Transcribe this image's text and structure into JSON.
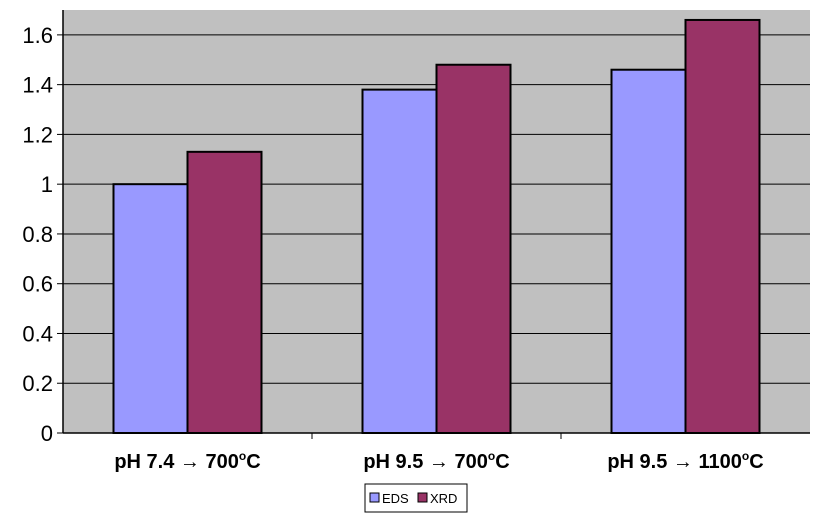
{
  "chart_data": {
    "type": "bar",
    "categories": [
      "pH 7.4 → 700°C",
      "pH 9.5 → 700°C",
      "pH 9.5 → 1100°C"
    ],
    "category_parts": [
      {
        "main": "pH 7.4 → 700",
        "sup": "o",
        "unit": "C"
      },
      {
        "main": "pH 9.5 → 700",
        "sup": "o",
        "unit": "C"
      },
      {
        "main": "pH 9.5 → 1100",
        "sup": "o",
        "unit": "C"
      }
    ],
    "series": [
      {
        "name": "EDS",
        "values": [
          1.0,
          1.38,
          1.46
        ],
        "color": "#9999ff"
      },
      {
        "name": "XRD",
        "values": [
          1.13,
          1.48,
          1.66
        ],
        "color": "#993366"
      }
    ],
    "yticks": [
      "0",
      "0.2",
      "0.4",
      "0.6",
      "0.8",
      "1",
      "1.2",
      "1.4",
      "1.6"
    ],
    "ylim": [
      0,
      1.7
    ],
    "grid": true,
    "plot_background": "#c0c0c0",
    "legend_position": "bottom-center",
    "title": "",
    "xlabel": "",
    "ylabel": ""
  }
}
